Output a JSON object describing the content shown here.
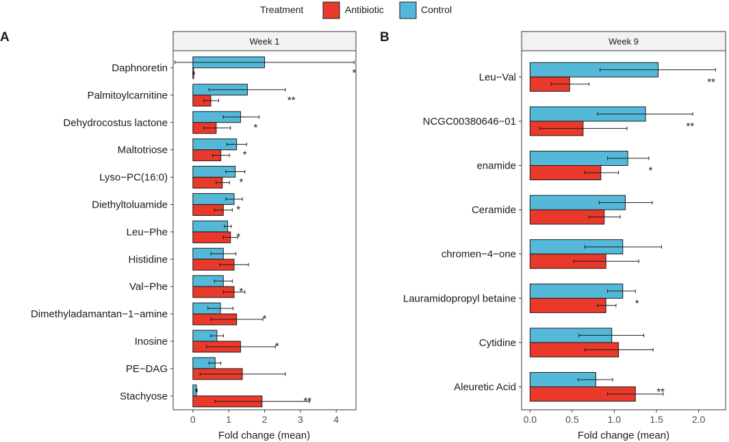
{
  "legend": {
    "title": "Treatment",
    "entries": [
      {
        "name": "Antibiotic",
        "color": "#e8392a"
      },
      {
        "name": "Control",
        "color": "#54b8d9"
      }
    ]
  },
  "chart_data": [
    {
      "type": "bar",
      "orientation": "horizontal",
      "panel_label": "A",
      "strip_title": "Week 1",
      "xlabel": "Fold change (mean)",
      "xlim": [
        -0.55,
        4.55
      ],
      "xticks": [
        0,
        1,
        2,
        3,
        4
      ],
      "xtick_labels": [
        "0",
        "1",
        "2",
        "3",
        "4"
      ],
      "categories": [
        "Daphnoretin",
        "Palmitoylcarnitine",
        "Dehydrocostus lactone",
        "Maltotriose",
        "Lyso−PC(16:0)",
        "Diethyltoluamide",
        "Leu−Phe",
        "Histidine",
        "Val−Phe",
        "Dimethyladamantan−1−amine",
        "Inosine",
        "PE−DAG",
        "Stachyose"
      ],
      "series": [
        {
          "name": "Control",
          "color": "#54b8d9",
          "values": [
            2.0,
            1.52,
            1.33,
            1.22,
            1.18,
            1.15,
            0.97,
            0.85,
            0.85,
            0.77,
            0.67,
            0.62,
            0.1
          ],
          "err_low": [
            -0.5,
            0.45,
            0.85,
            0.95,
            0.92,
            0.92,
            0.88,
            0.5,
            0.6,
            0.42,
            0.5,
            0.45,
            0.08
          ],
          "err_high": [
            4.5,
            2.58,
            1.85,
            1.5,
            1.45,
            1.38,
            1.07,
            1.2,
            1.1,
            1.12,
            0.85,
            0.78,
            0.12
          ]
        },
        {
          "name": "Antibiotic",
          "color": "#e8392a",
          "values": [
            0.02,
            0.5,
            0.65,
            0.78,
            0.82,
            0.85,
            1.05,
            1.15,
            1.15,
            1.22,
            1.33,
            1.38,
            1.93
          ],
          "err_low": [
            0.0,
            0.3,
            0.3,
            0.55,
            0.65,
            0.6,
            0.85,
            0.75,
            0.85,
            0.5,
            0.38,
            0.2,
            0.62
          ],
          "err_high": [
            0.04,
            0.72,
            1.05,
            1.02,
            1.02,
            1.1,
            1.25,
            1.55,
            1.45,
            1.95,
            2.3,
            2.58,
            3.25
          ]
        }
      ],
      "significance": [
        "*",
        "**",
        "*",
        "*",
        "*",
        "*",
        "*",
        "",
        "*",
        "*",
        "*",
        "",
        "**"
      ],
      "sig_x": [
        4.5,
        2.75,
        1.75,
        1.45,
        1.35,
        1.27,
        1.27,
        0,
        1.35,
        2.0,
        2.35,
        0,
        3.2
      ]
    },
    {
      "type": "bar",
      "orientation": "horizontal",
      "panel_label": "B",
      "strip_title": "Week 9",
      "xlabel": "Fold change (mean)",
      "xlim": [
        -0.1,
        2.32
      ],
      "xticks": [
        0.0,
        0.5,
        1.0,
        1.5,
        2.0
      ],
      "xtick_labels": [
        "0.0",
        "0.5",
        "1.0",
        "1.5",
        "2.0"
      ],
      "categories": [
        "Leu−Val",
        "NCGC00380646−01",
        "enamide",
        "Ceramide",
        "chromen−4−one",
        "Lauramidopropyl betaine",
        "Cytidine",
        "Aleuretic Acid"
      ],
      "series": [
        {
          "name": "Control",
          "color": "#54b8d9",
          "values": [
            1.52,
            1.37,
            1.16,
            1.13,
            1.1,
            1.1,
            0.97,
            0.78
          ],
          "err_low": [
            0.83,
            0.8,
            0.92,
            0.82,
            0.65,
            0.92,
            0.58,
            0.57
          ],
          "err_high": [
            2.2,
            1.93,
            1.41,
            1.45,
            1.56,
            1.25,
            1.35,
            0.98
          ]
        },
        {
          "name": "Antibiotic",
          "color": "#e8392a",
          "values": [
            0.47,
            0.63,
            0.84,
            0.88,
            0.9,
            0.9,
            1.05,
            1.25
          ],
          "err_low": [
            0.25,
            0.12,
            0.65,
            0.7,
            0.52,
            0.8,
            0.65,
            0.92
          ],
          "err_high": [
            0.7,
            1.15,
            1.05,
            1.07,
            1.29,
            1.02,
            1.46,
            1.58
          ]
        }
      ],
      "significance": [
        "**",
        "**",
        "*",
        "",
        "",
        "*",
        "",
        "**"
      ],
      "sig_x": [
        2.15,
        1.9,
        1.43,
        0,
        0,
        1.27,
        0,
        1.55
      ]
    }
  ]
}
